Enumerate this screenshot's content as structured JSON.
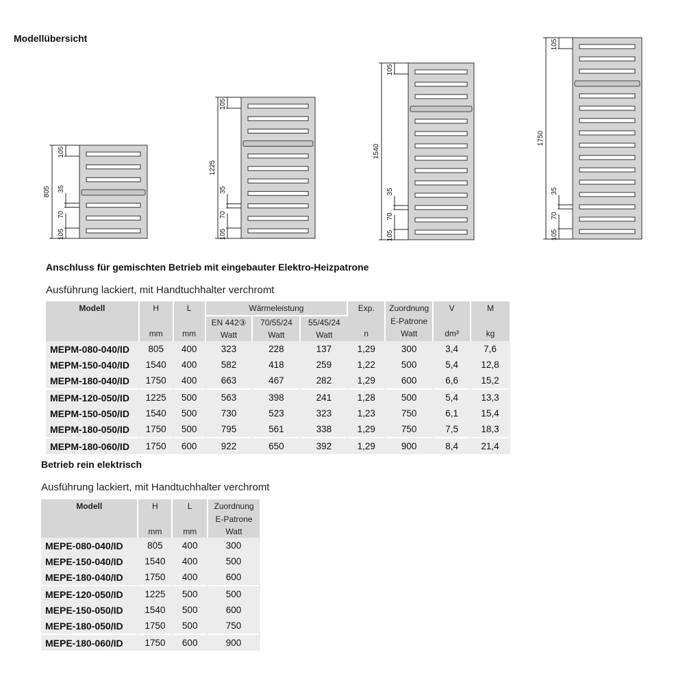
{
  "title": "Modellübersicht",
  "diagrams": [
    {
      "height_label": "1225",
      "labels": [
        "105",
        "35",
        "70",
        "105"
      ]
    }
  ],
  "diagram_set": [
    {
      "total": "805",
      "top": "105",
      "gap": "35",
      "pitch": "70",
      "bottom": "105",
      "bars_below": 3
    },
    {
      "total": "1225",
      "top": "105",
      "gap": "35",
      "pitch": "70",
      "bottom": "105",
      "bars_below": 7
    },
    {
      "total": "1540",
      "top": "105",
      "gap": "35",
      "pitch": "70",
      "bottom": "105",
      "bars_below": 10
    },
    {
      "total": "1750",
      "top": "105",
      "gap": "35",
      "pitch": "70",
      "bottom": "105",
      "bars_below": 12
    }
  ],
  "mixed": {
    "heading": "Anschluss für gemischten Betrieb mit eingebauter Elektro-Heizpatrone",
    "subheading": "Ausführung lackiert, mit Handtuchhalter verchromt",
    "headers": {
      "modell": "Modell",
      "h": "H",
      "l": "L",
      "waerme": "Wärmeleistung",
      "en": "EN 442③",
      "t70": "70/55/24",
      "t55": "55/45/24",
      "watt": "Watt",
      "exp": "Exp.",
      "n": "n",
      "zuord": "Zuordnung",
      "epatrone": "E-Patrone",
      "v": "V",
      "dm3": "dm³",
      "m": "M",
      "kg": "kg",
      "mm": "mm"
    },
    "rows": [
      [
        "MEPM-080-040/ID",
        "805",
        "400",
        "323",
        "228",
        "137",
        "1,29",
        "300",
        "3,4",
        "7,6"
      ],
      [
        "MEPM-150-040/ID",
        "1540",
        "400",
        "582",
        "418",
        "259",
        "1,22",
        "500",
        "5,4",
        "12,8"
      ],
      [
        "MEPM-180-040/ID",
        "1750",
        "400",
        "663",
        "467",
        "282",
        "1,29",
        "600",
        "6,6",
        "15,2"
      ],
      [
        "MEPM-120-050/ID",
        "1225",
        "500",
        "563",
        "398",
        "241",
        "1,28",
        "500",
        "5,4",
        "13,3"
      ],
      [
        "MEPM-150-050/ID",
        "1540",
        "500",
        "730",
        "523",
        "323",
        "1,23",
        "750",
        "6,1",
        "15,4"
      ],
      [
        "MEPM-180-050/ID",
        "1750",
        "500",
        "795",
        "561",
        "338",
        "1,29",
        "750",
        "7,5",
        "18,3"
      ],
      [
        "MEPM-180-060/ID",
        "1750",
        "600",
        "922",
        "650",
        "392",
        "1,29",
        "900",
        "8,4",
        "21,4"
      ]
    ]
  },
  "electric": {
    "heading": "Betrieb rein elektrisch",
    "subheading": "Ausführung lackiert, mit Handtuchhalter verchromt",
    "headers": {
      "modell": "Modell",
      "h": "H",
      "l": "L",
      "zuord": "Zuordnung",
      "epatrone": "E-Patrone",
      "watt": "Watt",
      "mm": "mm"
    },
    "rows": [
      [
        "MEPE-080-040/ID",
        "805",
        "400",
        "300"
      ],
      [
        "MEPE-150-040/ID",
        "1540",
        "400",
        "500"
      ],
      [
        "MEPE-180-040/ID",
        "1750",
        "400",
        "600"
      ],
      [
        "MEPE-120-050/ID",
        "1225",
        "500",
        "500"
      ],
      [
        "MEPE-150-050/ID",
        "1540",
        "500",
        "600"
      ],
      [
        "MEPE-180-050/ID",
        "1750",
        "500",
        "750"
      ],
      [
        "MEPE-180-060/ID",
        "1750",
        "600",
        "900"
      ]
    ]
  },
  "colors": {
    "panel": "#d4d4d4",
    "header": "#d6d6d6",
    "row": "#ececec"
  }
}
